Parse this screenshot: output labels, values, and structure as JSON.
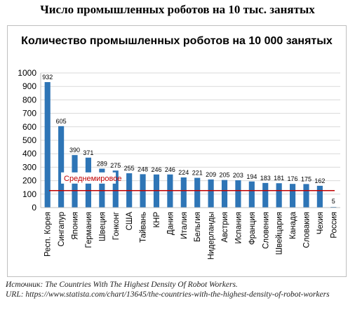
{
  "page_title": "Число промышленных роботов на 10 тыс. занятых",
  "source": {
    "line1": "Источник: The Countries With The Highest Density Of Robot Workers.",
    "line2": "URL: https://www.statista.com/chart/13645/the-countries-with-the-highest-density-of-robot-workers"
  },
  "colors": {
    "bar": "#2e75b6",
    "average_line": "#c00000",
    "grid": "#d9d9d9"
  },
  "chart_data": {
    "type": "bar",
    "title": "Количество промышленных роботов на 10 000 занятых",
    "categories": [
      "Респ. Корея",
      "Сингапур",
      "Япония",
      "Германия",
      "Швеция",
      "Гонконг",
      "США",
      "Тайвань",
      "КНР",
      "Дания",
      "Италия",
      "Бельгия",
      "Нидерланды",
      "Австрия",
      "Испания",
      "Франция",
      "Словения",
      "Швейцария",
      "Канада",
      "Словакия",
      "Чехия",
      "Россия"
    ],
    "values": [
      932,
      605,
      390,
      371,
      289,
      275,
      255,
      248,
      246,
      246,
      224,
      221,
      209,
      205,
      203,
      194,
      183,
      181,
      176,
      175,
      162,
      5
    ],
    "value_labels": [
      "932",
      "605",
      "390",
      "371",
      "289",
      "275",
      "255",
      "248",
      "246",
      "246",
      "224",
      "221",
      "209",
      "205",
      "203",
      "194",
      "183",
      "181",
      "176",
      "175",
      "162",
      "5"
    ],
    "ylim": [
      0,
      1000
    ],
    "yticks": [
      0,
      100,
      200,
      300,
      400,
      500,
      600,
      700,
      800,
      900,
      1000
    ],
    "grid": true,
    "average": {
      "label": "Среднемировое",
      "value": 126
    }
  }
}
